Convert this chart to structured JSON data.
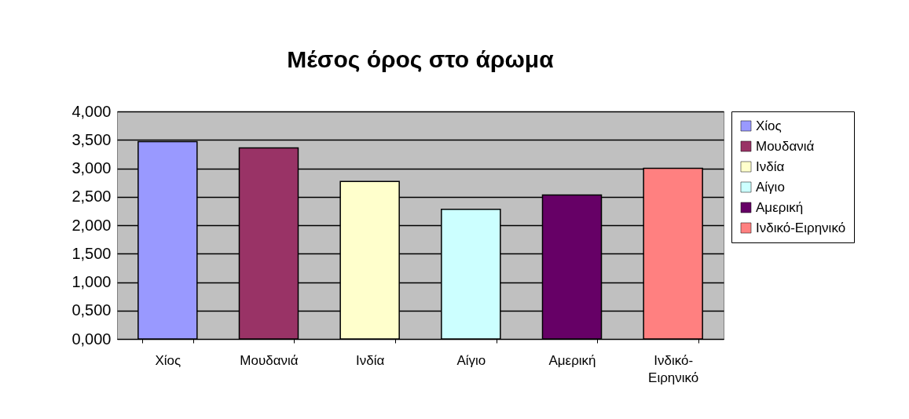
{
  "chart_data": {
    "type": "bar",
    "title": "Μέσος όρος στο άρωμα",
    "categories": [
      "Χίος",
      "Μουδανιά",
      "Ινδία",
      "Αίγιο",
      "Αμερική",
      "Ινδικό-Ειρηνικό"
    ],
    "stacked": true,
    "series": [
      {
        "name": "Χίος",
        "color": "#9999ff",
        "values": [
          3.47,
          null,
          null,
          null,
          null,
          null
        ]
      },
      {
        "name": "Μουδανιά",
        "color": "#993366",
        "values": [
          null,
          3.36,
          null,
          null,
          null,
          null
        ]
      },
      {
        "name": "Ινδία",
        "color": "#ffffcc",
        "values": [
          null,
          null,
          2.77,
          null,
          null,
          null
        ]
      },
      {
        "name": "Αίγιο",
        "color": "#ccffff",
        "values": [
          null,
          null,
          null,
          2.28,
          null,
          null
        ]
      },
      {
        "name": "Αμερική",
        "color": "#660066",
        "values": [
          null,
          null,
          null,
          null,
          2.53,
          null
        ]
      },
      {
        "name": "Ινδικό-Ειρηνικό",
        "color": "#ff8080",
        "values": [
          null,
          null,
          null,
          null,
          null,
          3.0
        ]
      }
    ],
    "ylim": [
      0,
      4
    ],
    "yticks": [
      {
        "value": 0,
        "label": "0,000"
      },
      {
        "value": 0.5,
        "label": "0,500"
      },
      {
        "value": 1,
        "label": "1,000"
      },
      {
        "value": 1.5,
        "label": "1,500"
      },
      {
        "value": 2,
        "label": "2,000"
      },
      {
        "value": 2.5,
        "label": "2,500"
      },
      {
        "value": 3,
        "label": "3,000"
      },
      {
        "value": 3.5,
        "label": "3,500"
      },
      {
        "value": 4,
        "label": "4,000"
      }
    ],
    "grid": "y",
    "legend": "right"
  }
}
